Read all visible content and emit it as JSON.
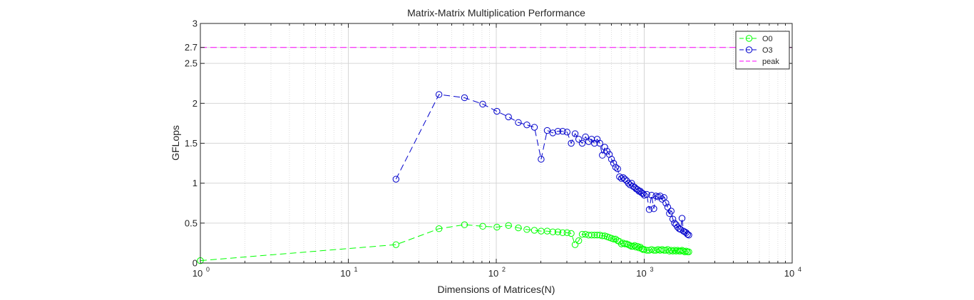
{
  "chart_data": {
    "type": "line",
    "title": "Matrix-Matrix Multiplication Performance",
    "xlabel": "Dimensions of Matrices(N)",
    "ylabel": "GFLops",
    "xscale": "log",
    "xlim": [
      1,
      10000
    ],
    "ylim": [
      0,
      3
    ],
    "x_ticks": [
      {
        "value": 1,
        "base": "10",
        "exp": "0"
      },
      {
        "value": 10,
        "base": "10",
        "exp": "1"
      },
      {
        "value": 100,
        "base": "10",
        "exp": "2"
      },
      {
        "value": 1000,
        "base": "10",
        "exp": "3"
      },
      {
        "value": 10000,
        "base": "10",
        "exp": "4"
      }
    ],
    "y_ticks": [
      {
        "value": 0,
        "label": "0"
      },
      {
        "value": 0.5,
        "label": "0.5"
      },
      {
        "value": 1,
        "label": "1"
      },
      {
        "value": 1.5,
        "label": "1.5"
      },
      {
        "value": 2,
        "label": "2"
      },
      {
        "value": 2.5,
        "label": "2.5"
      },
      {
        "value": 2.7,
        "label": "2.7"
      },
      {
        "value": 3,
        "label": "3"
      }
    ],
    "grid": true,
    "legend_position": "top-right",
    "series": [
      {
        "name": "O0",
        "color": "#00ff00",
        "line_style": "dashed",
        "marker": "circle",
        "x": [
          1,
          21,
          41,
          61,
          81,
          101,
          121,
          141,
          161,
          181,
          201,
          221,
          241,
          261,
          281,
          301,
          321,
          341,
          361,
          381,
          401,
          421,
          441,
          461,
          481,
          501,
          521,
          541,
          561,
          581,
          601,
          621,
          641,
          661,
          681,
          701,
          721,
          741,
          761,
          781,
          801,
          821,
          841,
          861,
          881,
          901,
          921,
          941,
          961,
          981,
          1001,
          1041,
          1081,
          1121,
          1161,
          1201,
          1241,
          1281,
          1321,
          1361,
          1401,
          1441,
          1481,
          1521,
          1561,
          1601,
          1641,
          1681,
          1721,
          1761,
          1801,
          1841,
          1881,
          1921,
          1961,
          2001
        ],
        "y": [
          0.03,
          0.23,
          0.43,
          0.48,
          0.46,
          0.45,
          0.47,
          0.44,
          0.42,
          0.41,
          0.4,
          0.4,
          0.39,
          0.39,
          0.38,
          0.38,
          0.37,
          0.23,
          0.28,
          0.36,
          0.36,
          0.35,
          0.35,
          0.35,
          0.35,
          0.35,
          0.34,
          0.34,
          0.33,
          0.32,
          0.31,
          0.3,
          0.3,
          0.28,
          0.27,
          0.24,
          0.25,
          0.24,
          0.24,
          0.23,
          0.22,
          0.21,
          0.21,
          0.22,
          0.2,
          0.21,
          0.19,
          0.2,
          0.18,
          0.17,
          0.17,
          0.16,
          0.16,
          0.17,
          0.16,
          0.16,
          0.17,
          0.16,
          0.17,
          0.16,
          0.16,
          0.17,
          0.15,
          0.16,
          0.15,
          0.16,
          0.15,
          0.16,
          0.15,
          0.15,
          0.16,
          0.15,
          0.14,
          0.15,
          0.14,
          0.14
        ]
      },
      {
        "name": "O3",
        "color": "#0000cc",
        "line_style": "dashed",
        "marker": "circle",
        "x": [
          21,
          41,
          61,
          81,
          101,
          121,
          141,
          161,
          181,
          201,
          221,
          241,
          261,
          281,
          301,
          321,
          341,
          361,
          381,
          401,
          421,
          441,
          461,
          481,
          501,
          521,
          541,
          561,
          581,
          601,
          621,
          641,
          661,
          681,
          701,
          721,
          741,
          761,
          781,
          801,
          821,
          841,
          861,
          881,
          901,
          921,
          941,
          961,
          981,
          1001,
          1041,
          1081,
          1121,
          1161,
          1201,
          1241,
          1281,
          1321,
          1361,
          1401,
          1441,
          1481,
          1521,
          1561,
          1601,
          1641,
          1681,
          1721,
          1761,
          1801,
          1841,
          1881,
          1921,
          1961,
          2001
        ],
        "y": [
          1.05,
          2.11,
          2.07,
          1.99,
          1.9,
          1.83,
          1.76,
          1.73,
          1.7,
          1.3,
          1.66,
          1.63,
          1.65,
          1.65,
          1.64,
          1.5,
          1.62,
          1.55,
          1.5,
          1.58,
          1.52,
          1.55,
          1.5,
          1.55,
          1.5,
          1.35,
          1.45,
          1.4,
          1.36,
          1.3,
          1.25,
          1.2,
          1.18,
          1.08,
          1.06,
          1.07,
          1.05,
          1.03,
          1.0,
          0.98,
          1.0,
          0.96,
          0.95,
          0.93,
          0.92,
          0.9,
          0.9,
          0.88,
          0.87,
          0.85,
          0.86,
          0.67,
          0.85,
          0.68,
          0.84,
          0.83,
          0.84,
          0.8,
          0.82,
          0.75,
          0.7,
          0.62,
          0.65,
          0.55,
          0.5,
          0.48,
          0.45,
          0.43,
          0.42,
          0.56,
          0.4,
          0.39,
          0.38,
          0.36,
          0.35
        ]
      },
      {
        "name": "peak",
        "color": "#ff00ff",
        "line_style": "dashed",
        "marker": "none",
        "x": [
          1,
          10000
        ],
        "y": [
          2.7,
          2.7
        ]
      }
    ]
  }
}
